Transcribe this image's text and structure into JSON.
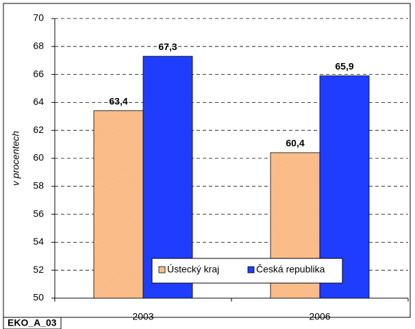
{
  "chart_data": {
    "type": "bar",
    "y_label": "v procentech",
    "footer_label": "EKO_A_03",
    "categories": [
      "2003",
      "2006"
    ],
    "series": [
      {
        "name": "Ústecký kraj",
        "color": "#fac08f",
        "label_color": "#f08a1c",
        "values": [
          63.4,
          60.4
        ],
        "value_labels": [
          "63,4",
          "60,4"
        ]
      },
      {
        "name": "Česká republika",
        "color": "#1f3dff",
        "label_color": "#3a6ef2",
        "values": [
          67.3,
          65.9
        ],
        "value_labels": [
          "67,3",
          "65,9"
        ]
      }
    ],
    "ylim": [
      50,
      70
    ],
    "yticks": [
      50,
      52,
      54,
      56,
      58,
      60,
      62,
      64,
      66,
      68,
      70
    ],
    "grid": true
  }
}
